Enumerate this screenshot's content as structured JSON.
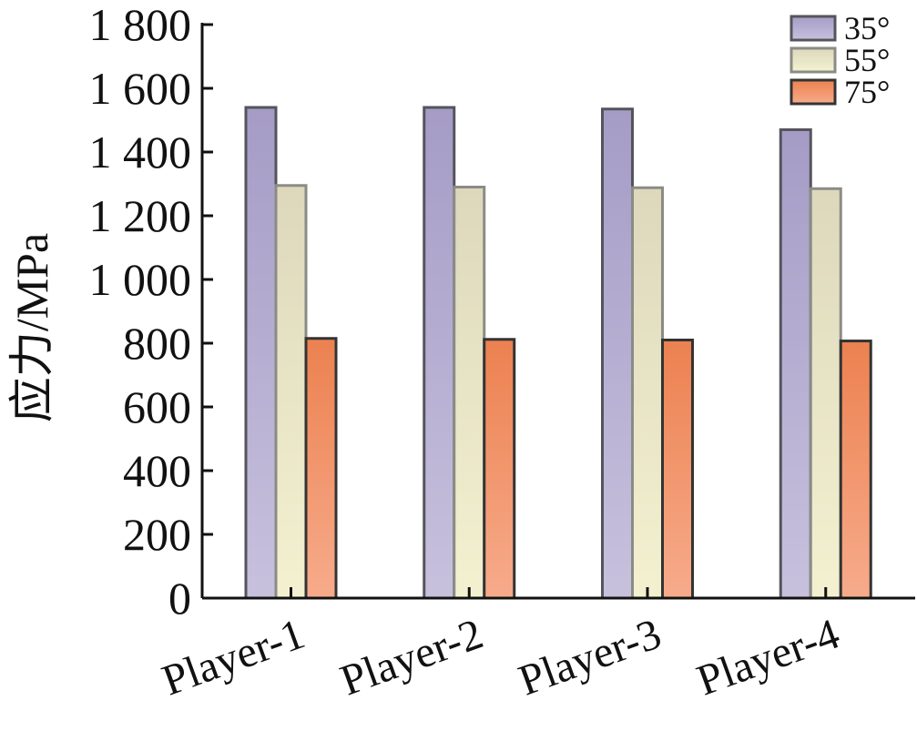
{
  "chart_data": {
    "type": "bar",
    "title": "",
    "xlabel": "",
    "ylabel": "应力/MPa",
    "categories": [
      "Player-1",
      "Player-2",
      "Player-3",
      "Player-4"
    ],
    "series": [
      {
        "name": "35°",
        "values": [
          1540,
          1540,
          1535,
          1470
        ]
      },
      {
        "name": "55°",
        "values": [
          1295,
          1290,
          1288,
          1285
        ]
      },
      {
        "name": "75°",
        "values": [
          815,
          812,
          810,
          807
        ]
      }
    ],
    "ylim": [
      0,
      1800
    ],
    "yticks": [
      0,
      200,
      400,
      600,
      800,
      1000,
      1200,
      1400,
      1600,
      1800
    ],
    "ytick_labels": [
      "0",
      "200",
      "400",
      "600",
      "800",
      "1 000",
      "1 200",
      "1 400",
      "1 600",
      "1 800"
    ],
    "grid": false,
    "legend_position": "top-right",
    "colors": {
      "35°": {
        "top": "#a59cc6",
        "bottom": "#c7c1dd",
        "stroke": "#55545c"
      },
      "55°": {
        "top": "#ddd8bc",
        "bottom": "#f3f1d0",
        "stroke": "#8b8b86"
      },
      "75°": {
        "top": "#ec8150",
        "bottom": "#f7ab8b",
        "stroke": "#333333"
      }
    }
  }
}
